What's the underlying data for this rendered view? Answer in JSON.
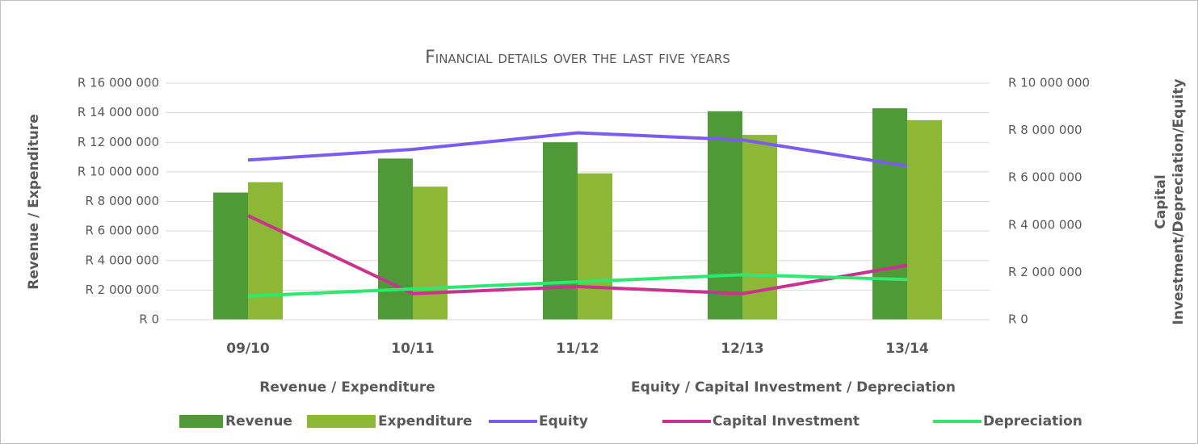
{
  "chart_data": {
    "type": "bar_line",
    "title": "Financial details over the last five years",
    "y_label": "Revenue / Expenditure",
    "y2_label": "Capital Investment/Depreciation/Equity",
    "legend_groups": [
      "Revenue / Expenditure",
      "Equity / Capital Investment / Depreciation"
    ],
    "categories": [
      "09/10",
      "10/11",
      "11/12",
      "12/13",
      "13/14"
    ],
    "series": [
      {
        "name": "Revenue",
        "type": "bar",
        "color": "#4e9a37",
        "values": [
          8600000,
          10900000,
          12000000,
          14100000,
          14300000
        ]
      },
      {
        "name": "Expenditure",
        "type": "bar",
        "color": "#8cb836",
        "values": [
          9300000,
          9000000,
          9900000,
          12500000,
          13500000
        ]
      },
      {
        "name": "Equity",
        "type": "line",
        "axis": "y2",
        "color": "#7b5cf0",
        "values": [
          6750000,
          7200000,
          7900000,
          7600000,
          6500000
        ]
      },
      {
        "name": "Capital Investment",
        "type": "line",
        "axis": "y2",
        "color": "#c9338f",
        "values": [
          4400000,
          1100000,
          1400000,
          1100000,
          2300000
        ]
      },
      {
        "name": "Depreciation",
        "type": "line",
        "axis": "y2",
        "color": "#2ee86f",
        "values": [
          1000000,
          1300000,
          1600000,
          1900000,
          1700000
        ]
      }
    ],
    "ylim": [
      0,
      16000000
    ],
    "yticks": [
      {
        "value": 0,
        "label": "R 0"
      },
      {
        "value": 2000000,
        "label": "R 2 000 000"
      },
      {
        "value": 4000000,
        "label": "R 4 000 000"
      },
      {
        "value": 6000000,
        "label": "R 6 000 000"
      },
      {
        "value": 8000000,
        "label": "R 8 000 000"
      },
      {
        "value": 10000000,
        "label": "R 10 000 000"
      },
      {
        "value": 12000000,
        "label": "R 12 000 000"
      },
      {
        "value": 14000000,
        "label": "R 14 000 000"
      },
      {
        "value": 16000000,
        "label": "R 16 000 000"
      }
    ],
    "y2lim": [
      0,
      10000000
    ],
    "y2ticks": [
      {
        "value": 0,
        "label": "R 0"
      },
      {
        "value": 2000000,
        "label": "R 2 000 000"
      },
      {
        "value": 4000000,
        "label": "R 4 000 000"
      },
      {
        "value": 6000000,
        "label": "R 6 000 000"
      },
      {
        "value": 8000000,
        "label": "R 8 000 000"
      },
      {
        "value": 10000000,
        "label": "R 10 000 000"
      }
    ],
    "grid": true
  }
}
